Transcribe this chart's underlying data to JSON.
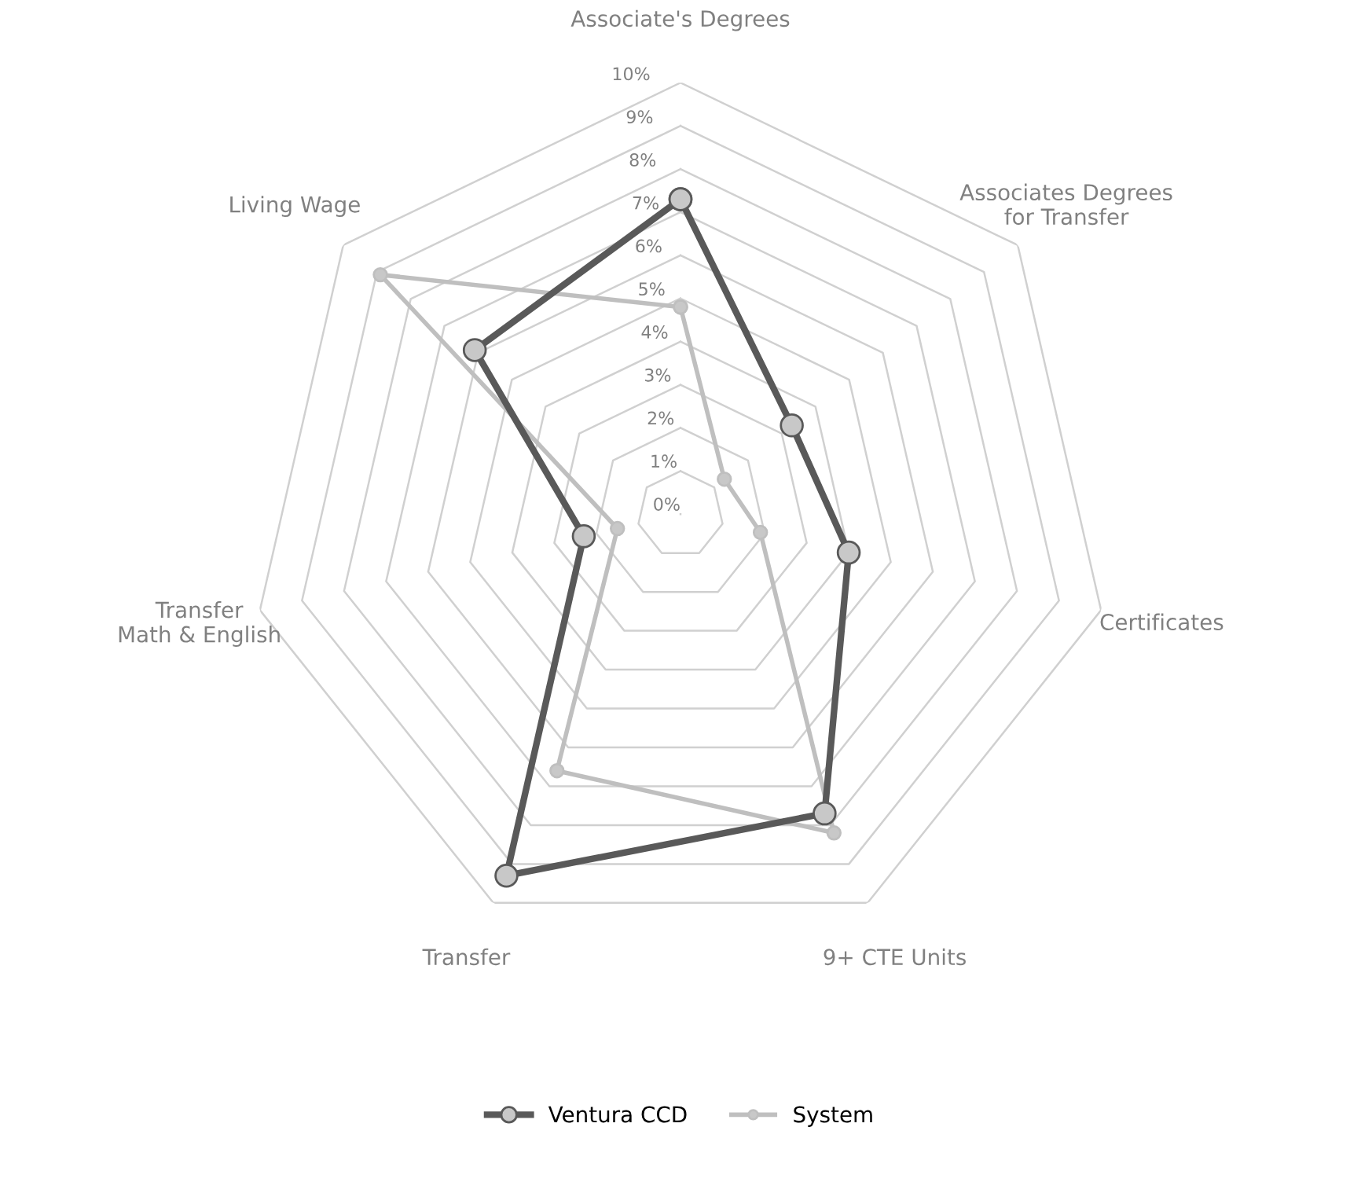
{
  "chart_data": {
    "type": "radar",
    "categories": [
      "Associate's Degrees",
      "Associates Degrees\nfor Transfer",
      "Certificates",
      "9+ CTE Units",
      "Transfer",
      "Transfer\nMath & English",
      "Living Wage"
    ],
    "series": [
      {
        "name": "Ventura CCD",
        "color": "#595959",
        "values": [
          7.3,
          3.3,
          4.0,
          7.7,
          9.3,
          2.3,
          6.1
        ]
      },
      {
        "name": "System",
        "color": "#bfbfbf",
        "values": [
          4.8,
          1.3,
          1.9,
          8.2,
          6.6,
          1.5,
          8.9
        ]
      }
    ],
    "ylim": [
      0,
      10
    ],
    "yticks": [
      {
        "value": 0,
        "label": "0%"
      },
      {
        "value": 1,
        "label": "1%"
      },
      {
        "value": 2,
        "label": "2%"
      },
      {
        "value": 3,
        "label": "3%"
      },
      {
        "value": 4,
        "label": "4%"
      },
      {
        "value": 5,
        "label": "5%"
      },
      {
        "value": 6,
        "label": "6%"
      },
      {
        "value": 7,
        "label": "7%"
      },
      {
        "value": 8,
        "label": "8%"
      },
      {
        "value": 9,
        "label": "9%"
      },
      {
        "value": 10,
        "label": "10%"
      }
    ],
    "grid": true,
    "legend": "bottom",
    "marker": "circle",
    "line_style": "solid"
  }
}
